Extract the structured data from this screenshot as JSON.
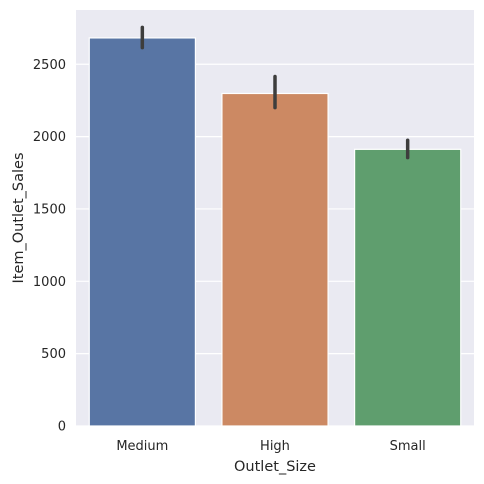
{
  "chart_data": {
    "type": "bar",
    "title": "",
    "xlabel": "Outlet_Size",
    "ylabel": "Item_Outlet_Sales",
    "categories": [
      "Medium",
      "High",
      "Small"
    ],
    "values": [
      2682,
      2298,
      1912
    ],
    "error_bars": [
      [
        2615,
        2755
      ],
      [
        2200,
        2415
      ],
      [
        1855,
        1975
      ]
    ],
    "ylim": [
      0,
      2875
    ],
    "yticks": [
      0,
      500,
      1000,
      1500,
      2000,
      2500
    ],
    "grid": true,
    "legend": "none",
    "colors": {
      "bars": [
        "#5875a4",
        "#cc8963",
        "#5f9e6e"
      ],
      "background": "#eaeaf2",
      "grid": "#ffffff",
      "error_bar": "#3d3d3d"
    }
  }
}
